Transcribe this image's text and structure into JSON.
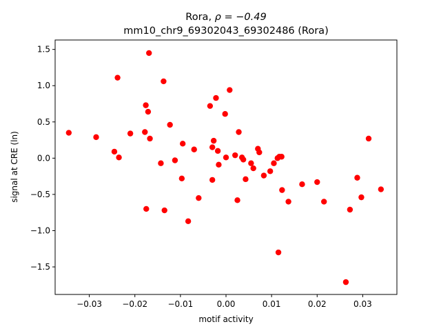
{
  "chart_data": {
    "type": "scatter",
    "title_line1_prefix": "Rora, ",
    "title_line1_rho": "ρ = −0.49",
    "title_line2": "mm10_chr9_69302043_69302486 (Rora)",
    "xlabel": "motif activity",
    "ylabel": "signal at CRE (ln)",
    "xlim": [
      -0.0375,
      0.0375
    ],
    "ylim": [
      -1.88,
      1.63
    ],
    "xticks": [
      -0.03,
      -0.02,
      -0.01,
      0.0,
      0.01,
      0.02,
      0.03
    ],
    "xtick_labels": [
      "−0.03",
      "−0.02",
      "−0.01",
      "0.00",
      "0.01",
      "0.02",
      "0.03"
    ],
    "yticks": [
      1.5,
      1.0,
      0.5,
      0.0,
      -0.5,
      -1.0,
      -1.5
    ],
    "ytick_labels": [
      "1.5",
      "1.0",
      "0.5",
      "0.0",
      "−0.5",
      "−1.0",
      "−1.5"
    ],
    "grid": false,
    "point_color": "#ff0000",
    "points": [
      [
        -0.0345,
        0.35
      ],
      [
        -0.0285,
        0.29
      ],
      [
        -0.0245,
        0.09
      ],
      [
        -0.0238,
        1.11
      ],
      [
        -0.0235,
        0.01
      ],
      [
        -0.021,
        0.34
      ],
      [
        -0.0178,
        0.36
      ],
      [
        -0.0176,
        0.73
      ],
      [
        -0.0175,
        -0.7
      ],
      [
        -0.0171,
        0.64
      ],
      [
        -0.0169,
        1.45
      ],
      [
        -0.0167,
        0.27
      ],
      [
        -0.0143,
        -0.07
      ],
      [
        -0.0137,
        1.06
      ],
      [
        -0.0135,
        -0.72
      ],
      [
        -0.0123,
        0.46
      ],
      [
        -0.0112,
        -0.03
      ],
      [
        -0.0097,
        -0.28
      ],
      [
        -0.0095,
        0.2
      ],
      [
        -0.0083,
        -0.87
      ],
      [
        -0.007,
        0.12
      ],
      [
        -0.006,
        -0.55
      ],
      [
        -0.0035,
        0.72
      ],
      [
        -0.003,
        0.15
      ],
      [
        -0.003,
        -0.3
      ],
      [
        -0.0027,
        0.24
      ],
      [
        -0.0022,
        0.83
      ],
      [
        -0.0018,
        0.1
      ],
      [
        -0.0016,
        -0.09
      ],
      [
        -0.0002,
        0.61
      ],
      [
        0.0,
        0.01
      ],
      [
        0.0008,
        0.94
      ],
      [
        0.002,
        0.04
      ],
      [
        0.0025,
        -0.58
      ],
      [
        0.0028,
        0.36
      ],
      [
        0.0035,
        0.01
      ],
      [
        0.0038,
        -0.02
      ],
      [
        0.0043,
        -0.29
      ],
      [
        0.0055,
        -0.07
      ],
      [
        0.006,
        -0.14
      ],
      [
        0.007,
        0.13
      ],
      [
        0.0073,
        0.08
      ],
      [
        0.0083,
        -0.24
      ],
      [
        0.0097,
        -0.18
      ],
      [
        0.0105,
        -0.07
      ],
      [
        0.0113,
        0.0
      ],
      [
        0.0115,
        -1.3
      ],
      [
        0.0117,
        0.02
      ],
      [
        0.0122,
        0.02
      ],
      [
        0.0123,
        -0.44
      ],
      [
        0.0137,
        -0.6
      ],
      [
        0.0167,
        -0.36
      ],
      [
        0.02,
        -0.33
      ],
      [
        0.0215,
        -0.6
      ],
      [
        0.0263,
        -1.71
      ],
      [
        0.0272,
        -0.71
      ],
      [
        0.0288,
        -0.27
      ],
      [
        0.0297,
        -0.54
      ],
      [
        0.0313,
        0.27
      ],
      [
        0.034,
        -0.43
      ]
    ]
  }
}
